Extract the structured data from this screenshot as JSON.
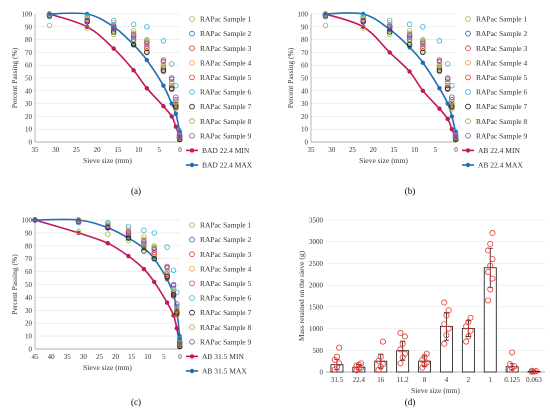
{
  "figure": {
    "labels": [
      "(a)",
      "(b)",
      "(c)",
      "(d)"
    ],
    "sample_colors": [
      "#8fbf3f",
      "#3b5cc4",
      "#d32f2f",
      "#f0a030",
      "#e53935",
      "#29b6d6",
      "#111111",
      "#7cb342",
      "#8e44ad"
    ],
    "min_color": "#c2185b",
    "max_color": "#1f6fb5"
  },
  "chart_data": [
    {
      "type": "scatter",
      "label": "(a)",
      "xlabel": "Sieve size (mm)",
      "ylabel": "Percent Passing (%)",
      "xlim": [
        35,
        0
      ],
      "ylim": [
        0,
        100
      ],
      "xticks": [
        35,
        30,
        25,
        20,
        15,
        10,
        5,
        0
      ],
      "yticks": [
        0,
        10,
        20,
        30,
        40,
        50,
        60,
        70,
        80,
        90,
        100
      ],
      "sieves": [
        31.5,
        22.4,
        16,
        11.2,
        8,
        4,
        2,
        1,
        0.125,
        0.063
      ],
      "series": [
        {
          "name": "RAPac Sample 1",
          "values": [
            91,
            89,
            84,
            78,
            71,
            57,
            42,
            26,
            3,
            2
          ]
        },
        {
          "name": "RAPac Sample 2",
          "values": [
            98,
            95,
            89,
            84,
            78,
            63,
            49,
            33,
            5,
            3
          ]
        },
        {
          "name": "RAPac Sample 3",
          "values": [
            100,
            94,
            88,
            80,
            73,
            58,
            44,
            29,
            4,
            2
          ]
        },
        {
          "name": "RAPac Sample 4",
          "values": [
            100,
            97,
            93,
            87,
            80,
            62,
            46,
            30,
            5,
            3
          ]
        },
        {
          "name": "RAPac Sample 5",
          "values": [
            99,
            96,
            91,
            83,
            75,
            55,
            41,
            27,
            4,
            2
          ]
        },
        {
          "name": "RAPac Sample 6",
          "values": [
            100,
            98,
            95,
            92,
            90,
            79,
            61,
            44,
            8,
            5
          ]
        },
        {
          "name": "RAPac Sample 7",
          "values": [
            99,
            94,
            86,
            76,
            70,
            56,
            42,
            28,
            3,
            2
          ]
        },
        {
          "name": "RAPac Sample 8",
          "values": [
            100,
            96,
            90,
            85,
            79,
            60,
            47,
            31,
            5,
            3
          ]
        },
        {
          "name": "RAPac Sample 9",
          "values": [
            99,
            95,
            90,
            82,
            77,
            64,
            50,
            35,
            6,
            4
          ]
        }
      ],
      "min_curve": {
        "name": "BAD 22.4 MIN",
        "x": [
          31.5,
          22.4,
          16,
          11.2,
          8,
          4,
          2,
          1,
          0.125,
          0.063
        ],
        "y": [
          100,
          90,
          73,
          56,
          42,
          28,
          20,
          12,
          4,
          3
        ]
      },
      "max_curve": {
        "name": "BAD 22.4 MAX",
        "x": [
          31.5,
          22.4,
          16,
          11.2,
          8,
          4,
          2,
          1,
          0.125,
          0.063
        ],
        "y": [
          100,
          100,
          90,
          76,
          64,
          44,
          30,
          22,
          9,
          7
        ]
      }
    },
    {
      "type": "scatter",
      "label": "(b)",
      "xlabel": "Sieve size (mm)",
      "ylabel": "Percent Passing (%)",
      "xlim": [
        35,
        0
      ],
      "ylim": [
        0,
        100
      ],
      "xticks": [
        35,
        30,
        25,
        20,
        15,
        10,
        5,
        0
      ],
      "yticks": [
        0,
        10,
        20,
        30,
        40,
        50,
        60,
        70,
        80,
        90,
        100
      ],
      "sieves": [
        31.5,
        22.4,
        16,
        11.2,
        8,
        4,
        2,
        1,
        0.125,
        0.063
      ],
      "series": [
        {
          "name": "RAPac Sample 1",
          "values": [
            91,
            89,
            84,
            78,
            71,
            57,
            42,
            26,
            3,
            2
          ]
        },
        {
          "name": "RAPac Sample 2",
          "values": [
            98,
            95,
            89,
            84,
            78,
            63,
            49,
            33,
            5,
            3
          ]
        },
        {
          "name": "RAPac Sample 3",
          "values": [
            100,
            94,
            88,
            80,
            73,
            58,
            44,
            29,
            4,
            2
          ]
        },
        {
          "name": "RAPac Sample 4",
          "values": [
            100,
            97,
            93,
            87,
            80,
            62,
            46,
            30,
            5,
            3
          ]
        },
        {
          "name": "RAPac Sample 5",
          "values": [
            99,
            96,
            91,
            83,
            75,
            55,
            41,
            27,
            4,
            2
          ]
        },
        {
          "name": "RAPac Sample 6",
          "values": [
            100,
            98,
            95,
            92,
            90,
            79,
            61,
            44,
            8,
            5
          ]
        },
        {
          "name": "RAPac Sample 7",
          "values": [
            99,
            94,
            86,
            76,
            70,
            56,
            42,
            28,
            3,
            2
          ]
        },
        {
          "name": "RAPac Sample 8",
          "values": [
            100,
            96,
            90,
            85,
            79,
            60,
            47,
            31,
            5,
            3
          ]
        },
        {
          "name": "RAPac Sample 9",
          "values": [
            99,
            95,
            90,
            82,
            77,
            64,
            50,
            35,
            6,
            4
          ]
        }
      ],
      "min_curve": {
        "name": "AB 22.4 MIN",
        "x": [
          31.5,
          22.4,
          16,
          11.2,
          8,
          4,
          2,
          1,
          0.125,
          0.063
        ],
        "y": [
          100,
          90,
          70,
          55,
          40,
          26,
          18,
          10,
          3,
          2
        ]
      },
      "max_curve": {
        "name": "AB 22.4 MAX",
        "x": [
          31.5,
          22.4,
          16,
          11.2,
          8,
          4,
          2,
          1,
          0.125,
          0.063
        ],
        "y": [
          100,
          100,
          88,
          74,
          62,
          42,
          30,
          20,
          8,
          6
        ]
      }
    },
    {
      "type": "scatter",
      "label": "(c)",
      "xlabel": "Sieve size (mm)",
      "ylabel": "Percent Passing (%)",
      "xlim": [
        45,
        0
      ],
      "ylim": [
        0,
        100
      ],
      "xticks": [
        45,
        40,
        35,
        30,
        25,
        20,
        15,
        10,
        5,
        0
      ],
      "yticks": [
        0,
        10,
        20,
        30,
        40,
        50,
        60,
        70,
        80,
        90,
        100
      ],
      "sieves": [
        45,
        31.5,
        22.4,
        16,
        11.2,
        8,
        4,
        2,
        1,
        0.125,
        0.063
      ],
      "series": [
        {
          "name": "RAPac Sample 1",
          "values": [
            100,
            91,
            89,
            84,
            78,
            71,
            57,
            42,
            26,
            3,
            2
          ]
        },
        {
          "name": "RAPac Sample 2",
          "values": [
            100,
            98,
            95,
            89,
            84,
            78,
            63,
            49,
            33,
            5,
            3
          ]
        },
        {
          "name": "RAPac Sample 3",
          "values": [
            100,
            100,
            94,
            88,
            80,
            73,
            58,
            44,
            29,
            4,
            2
          ]
        },
        {
          "name": "RAPac Sample 4",
          "values": [
            100,
            100,
            97,
            93,
            87,
            80,
            62,
            46,
            30,
            5,
            3
          ]
        },
        {
          "name": "RAPac Sample 5",
          "values": [
            100,
            99,
            96,
            91,
            83,
            75,
            55,
            41,
            27,
            4,
            2
          ]
        },
        {
          "name": "RAPac Sample 6",
          "values": [
            100,
            100,
            98,
            95,
            92,
            90,
            79,
            61,
            44,
            8,
            5
          ]
        },
        {
          "name": "RAPac Sample 7",
          "values": [
            100,
            99,
            94,
            86,
            76,
            70,
            56,
            42,
            28,
            3,
            2
          ]
        },
        {
          "name": "RAPac Sample 8",
          "values": [
            100,
            100,
            96,
            90,
            85,
            79,
            60,
            47,
            31,
            5,
            3
          ]
        },
        {
          "name": "RAPac Sample 9",
          "values": [
            100,
            99,
            95,
            90,
            82,
            77,
            64,
            50,
            35,
            6,
            4
          ]
        }
      ],
      "min_curve": {
        "name": "AB 31.5 MIN",
        "x": [
          45,
          31.5,
          22.4,
          16,
          11.2,
          8,
          4,
          2,
          1,
          0.125,
          0.063
        ],
        "y": [
          100,
          90,
          82,
          72,
          62,
          52,
          36,
          26,
          16,
          4,
          3
        ]
      },
      "max_curve": {
        "name": "AB 31.5 MAX",
        "x": [
          45,
          31.5,
          22.4,
          16,
          11.2,
          8,
          4,
          2,
          1,
          0.125,
          0.063
        ],
        "y": [
          100,
          100,
          94,
          86,
          78,
          70,
          54,
          42,
          30,
          10,
          8
        ]
      }
    },
    {
      "type": "bar",
      "label": "(d)",
      "xlabel": "Sieve size (mm)",
      "ylabel": "Mass retained on the sieve (g)",
      "ylim": [
        0,
        3500
      ],
      "yticks": [
        0,
        500,
        1000,
        1500,
        2000,
        2500,
        3000,
        3500
      ],
      "categories": [
        "31.5",
        "22.4",
        "16",
        "11.2",
        "8",
        "4",
        "2",
        "1",
        "0.125",
        "0.063"
      ],
      "values": [
        170,
        110,
        250,
        490,
        250,
        1050,
        1000,
        2400,
        120,
        15
      ],
      "error": [
        120,
        60,
        160,
        220,
        120,
        320,
        180,
        450,
        70,
        10
      ],
      "points": [
        [
          60,
          120,
          200,
          280,
          350,
          560
        ],
        [
          40,
          80,
          100,
          150,
          170,
          200
        ],
        [
          50,
          120,
          180,
          260,
          350,
          700
        ],
        [
          200,
          340,
          420,
          520,
          650,
          820,
          900
        ],
        [
          100,
          170,
          220,
          280,
          350,
          420
        ],
        [
          650,
          850,
          1000,
          1100,
          1300,
          1420,
          1600
        ],
        [
          700,
          820,
          950,
          1050,
          1150,
          1250
        ],
        [
          1650,
          1900,
          2150,
          2300,
          2450,
          2600,
          2800,
          2950,
          3200
        ],
        [
          50,
          90,
          130,
          180,
          450
        ],
        [
          5,
          10,
          20,
          30
        ]
      ]
    }
  ]
}
